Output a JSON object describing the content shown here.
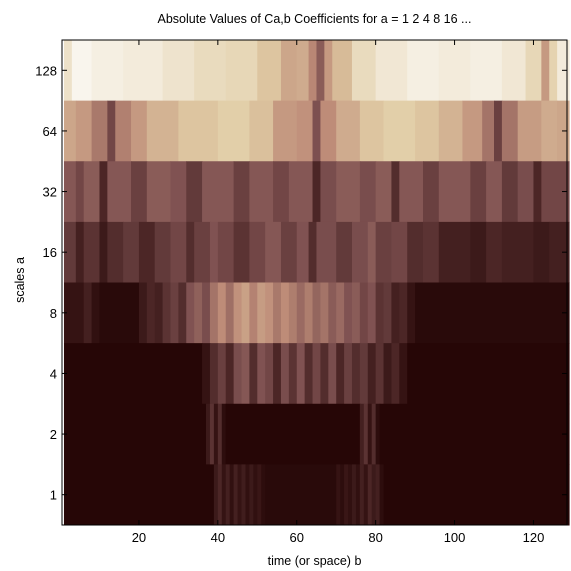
{
  "chart_data": {
    "type": "heatmap",
    "title": "Absolute Values of Ca,b Coefficients for a =  1 2 4 8 16 ...",
    "xlabel": "time (or space) b",
    "ylabel": "scales a",
    "x_range": [
      1,
      128
    ],
    "x_ticks": [
      "20",
      "40",
      "60",
      "80",
      "100",
      "120"
    ],
    "x_tick_values": [
      20,
      40,
      60,
      80,
      100,
      120
    ],
    "y_ticks": [
      "1",
      "2",
      "4",
      "8",
      "16",
      "32",
      "64",
      "128"
    ],
    "rows": [
      {
        "scale": "128",
        "segments": [
          [
            1,
            3,
            0.85
          ],
          [
            3,
            8,
            0.95
          ],
          [
            8,
            16,
            0.92
          ],
          [
            16,
            26,
            0.9
          ],
          [
            26,
            34,
            0.86
          ],
          [
            34,
            42,
            0.82
          ],
          [
            42,
            50,
            0.8
          ],
          [
            50,
            56,
            0.72
          ],
          [
            56,
            60,
            0.6
          ],
          [
            60,
            63,
            0.62
          ],
          [
            63,
            65,
            0.48
          ],
          [
            65,
            67,
            0.3
          ],
          [
            67,
            69,
            0.55
          ],
          [
            69,
            74,
            0.68
          ],
          [
            74,
            80,
            0.82
          ],
          [
            80,
            88,
            0.88
          ],
          [
            88,
            96,
            0.92
          ],
          [
            96,
            104,
            0.9
          ],
          [
            104,
            112,
            0.92
          ],
          [
            112,
            118,
            0.88
          ],
          [
            118,
            122,
            0.8
          ],
          [
            122,
            124,
            0.55
          ],
          [
            124,
            126,
            0.78
          ],
          [
            126,
            129,
            0.9
          ]
        ]
      },
      {
        "scale": "64",
        "segments": [
          [
            1,
            4,
            0.6
          ],
          [
            4,
            8,
            0.55
          ],
          [
            8,
            12,
            0.42
          ],
          [
            12,
            14,
            0.22
          ],
          [
            14,
            18,
            0.45
          ],
          [
            18,
            22,
            0.55
          ],
          [
            22,
            30,
            0.65
          ],
          [
            30,
            40,
            0.72
          ],
          [
            40,
            48,
            0.76
          ],
          [
            48,
            54,
            0.7
          ],
          [
            54,
            60,
            0.55
          ],
          [
            60,
            64,
            0.52
          ],
          [
            64,
            66,
            0.25
          ],
          [
            66,
            70,
            0.5
          ],
          [
            70,
            76,
            0.62
          ],
          [
            76,
            82,
            0.72
          ],
          [
            82,
            90,
            0.76
          ],
          [
            90,
            96,
            0.72
          ],
          [
            96,
            102,
            0.65
          ],
          [
            102,
            107,
            0.55
          ],
          [
            107,
            110,
            0.4
          ],
          [
            110,
            112,
            0.2
          ],
          [
            112,
            116,
            0.4
          ],
          [
            116,
            122,
            0.56
          ],
          [
            122,
            126,
            0.62
          ],
          [
            126,
            129,
            0.6
          ]
        ]
      },
      {
        "scale": "32",
        "segments": [
          [
            1,
            4,
            0.28
          ],
          [
            4,
            6,
            0.22
          ],
          [
            6,
            10,
            0.3
          ],
          [
            10,
            12,
            0.12
          ],
          [
            12,
            18,
            0.28
          ],
          [
            18,
            22,
            0.2
          ],
          [
            22,
            28,
            0.3
          ],
          [
            28,
            32,
            0.26
          ],
          [
            32,
            36,
            0.18
          ],
          [
            36,
            44,
            0.28
          ],
          [
            44,
            48,
            0.2
          ],
          [
            48,
            54,
            0.28
          ],
          [
            54,
            58,
            0.22
          ],
          [
            58,
            64,
            0.28
          ],
          [
            64,
            66,
            0.12
          ],
          [
            66,
            70,
            0.24
          ],
          [
            70,
            76,
            0.3
          ],
          [
            76,
            80,
            0.24
          ],
          [
            80,
            84,
            0.3
          ],
          [
            84,
            86,
            0.14
          ],
          [
            86,
            92,
            0.28
          ],
          [
            92,
            96,
            0.2
          ],
          [
            96,
            104,
            0.28
          ],
          [
            104,
            108,
            0.2
          ],
          [
            108,
            112,
            0.28
          ],
          [
            112,
            116,
            0.18
          ],
          [
            116,
            120,
            0.24
          ],
          [
            120,
            122,
            0.12
          ],
          [
            122,
            129,
            0.22
          ]
        ]
      },
      {
        "scale": "16",
        "segments": [
          [
            1,
            4,
            0.18
          ],
          [
            4,
            6,
            0.1
          ],
          [
            6,
            10,
            0.16
          ],
          [
            10,
            12,
            0.08
          ],
          [
            12,
            16,
            0.14
          ],
          [
            16,
            20,
            0.18
          ],
          [
            20,
            24,
            0.12
          ],
          [
            24,
            28,
            0.18
          ],
          [
            28,
            32,
            0.22
          ],
          [
            32,
            34,
            0.14
          ],
          [
            34,
            38,
            0.2
          ],
          [
            38,
            40,
            0.26
          ],
          [
            40,
            44,
            0.22
          ],
          [
            44,
            48,
            0.16
          ],
          [
            48,
            52,
            0.22
          ],
          [
            52,
            56,
            0.28
          ],
          [
            56,
            60,
            0.2
          ],
          [
            60,
            63,
            0.26
          ],
          [
            63,
            65,
            0.14
          ],
          [
            65,
            70,
            0.24
          ],
          [
            70,
            74,
            0.18
          ],
          [
            74,
            78,
            0.24
          ],
          [
            78,
            80,
            0.3
          ],
          [
            80,
            84,
            0.2
          ],
          [
            84,
            88,
            0.22
          ],
          [
            88,
            92,
            0.14
          ],
          [
            92,
            96,
            0.16
          ],
          [
            96,
            104,
            0.1
          ],
          [
            104,
            108,
            0.08
          ],
          [
            108,
            112,
            0.12
          ],
          [
            112,
            120,
            0.1
          ],
          [
            120,
            124,
            0.08
          ],
          [
            124,
            129,
            0.1
          ]
        ]
      },
      {
        "scale": "8",
        "segments": [
          [
            1,
            6,
            0.06
          ],
          [
            6,
            8,
            0.1
          ],
          [
            8,
            10,
            0.05
          ],
          [
            10,
            20,
            0.03
          ],
          [
            20,
            22,
            0.08
          ],
          [
            22,
            24,
            0.12
          ],
          [
            24,
            26,
            0.1
          ],
          [
            26,
            28,
            0.16
          ],
          [
            28,
            30,
            0.2
          ],
          [
            30,
            32,
            0.14
          ],
          [
            32,
            34,
            0.26
          ],
          [
            34,
            36,
            0.32
          ],
          [
            36,
            38,
            0.24
          ],
          [
            38,
            40,
            0.4
          ],
          [
            40,
            42,
            0.5
          ],
          [
            42,
            44,
            0.38
          ],
          [
            44,
            46,
            0.52
          ],
          [
            46,
            48,
            0.58
          ],
          [
            48,
            50,
            0.46
          ],
          [
            50,
            52,
            0.56
          ],
          [
            52,
            54,
            0.52
          ],
          [
            54,
            56,
            0.42
          ],
          [
            56,
            58,
            0.5
          ],
          [
            58,
            60,
            0.44
          ],
          [
            60,
            62,
            0.36
          ],
          [
            62,
            64,
            0.44
          ],
          [
            64,
            66,
            0.34
          ],
          [
            66,
            68,
            0.4
          ],
          [
            68,
            70,
            0.3
          ],
          [
            70,
            72,
            0.36
          ],
          [
            72,
            74,
            0.26
          ],
          [
            74,
            76,
            0.3
          ],
          [
            76,
            78,
            0.22
          ],
          [
            78,
            80,
            0.26
          ],
          [
            80,
            82,
            0.16
          ],
          [
            82,
            84,
            0.18
          ],
          [
            84,
            86,
            0.1
          ],
          [
            86,
            88,
            0.12
          ],
          [
            88,
            90,
            0.06
          ],
          [
            90,
            129,
            0.03
          ]
        ]
      },
      {
        "scale": "4",
        "segments": [
          [
            1,
            36,
            0.02
          ],
          [
            36,
            38,
            0.06
          ],
          [
            38,
            40,
            0.14
          ],
          [
            40,
            42,
            0.2
          ],
          [
            42,
            44,
            0.12
          ],
          [
            44,
            46,
            0.24
          ],
          [
            46,
            48,
            0.28
          ],
          [
            48,
            50,
            0.14
          ],
          [
            50,
            52,
            0.26
          ],
          [
            52,
            54,
            0.22
          ],
          [
            54,
            56,
            0.12
          ],
          [
            56,
            58,
            0.24
          ],
          [
            58,
            60,
            0.16
          ],
          [
            60,
            62,
            0.26
          ],
          [
            62,
            64,
            0.14
          ],
          [
            64,
            66,
            0.22
          ],
          [
            66,
            68,
            0.14
          ],
          [
            68,
            70,
            0.24
          ],
          [
            70,
            72,
            0.12
          ],
          [
            72,
            74,
            0.2
          ],
          [
            74,
            76,
            0.14
          ],
          [
            76,
            78,
            0.18
          ],
          [
            78,
            80,
            0.1
          ],
          [
            80,
            82,
            0.16
          ],
          [
            82,
            84,
            0.08
          ],
          [
            84,
            86,
            0.12
          ],
          [
            86,
            88,
            0.06
          ],
          [
            88,
            129,
            0.02
          ]
        ]
      },
      {
        "scale": "2",
        "segments": [
          [
            1,
            37,
            0.02
          ],
          [
            37,
            38,
            0.08
          ],
          [
            38,
            39,
            0.16
          ],
          [
            39,
            40,
            0.06
          ],
          [
            40,
            41,
            0.14
          ],
          [
            41,
            42,
            0.04
          ],
          [
            42,
            76,
            0.02
          ],
          [
            76,
            77,
            0.1
          ],
          [
            77,
            78,
            0.16
          ],
          [
            78,
            79,
            0.06
          ],
          [
            79,
            80,
            0.14
          ],
          [
            80,
            81,
            0.04
          ],
          [
            81,
            129,
            0.02
          ]
        ]
      },
      {
        "scale": "1",
        "segments": [
          [
            1,
            39,
            0.02
          ],
          [
            39,
            40,
            0.08
          ],
          [
            40,
            41,
            0.12
          ],
          [
            41,
            42,
            0.06
          ],
          [
            42,
            43,
            0.1
          ],
          [
            43,
            44,
            0.05
          ],
          [
            44,
            45,
            0.1
          ],
          [
            45,
            46,
            0.06
          ],
          [
            46,
            47,
            0.09
          ],
          [
            47,
            48,
            0.05
          ],
          [
            48,
            49,
            0.08
          ],
          [
            49,
            50,
            0.05
          ],
          [
            50,
            51,
            0.07
          ],
          [
            51,
            52,
            0.04
          ],
          [
            52,
            70,
            0.03
          ],
          [
            70,
            71,
            0.06
          ],
          [
            71,
            72,
            0.04
          ],
          [
            72,
            73,
            0.07
          ],
          [
            73,
            74,
            0.05
          ],
          [
            74,
            75,
            0.08
          ],
          [
            75,
            76,
            0.05
          ],
          [
            76,
            77,
            0.1
          ],
          [
            77,
            78,
            0.06
          ],
          [
            78,
            79,
            0.12
          ],
          [
            79,
            80,
            0.08
          ],
          [
            80,
            81,
            0.1
          ],
          [
            81,
            82,
            0.04
          ],
          [
            82,
            129,
            0.02
          ]
        ]
      }
    ],
    "colormap": "pink",
    "grid": false,
    "legend": false
  }
}
